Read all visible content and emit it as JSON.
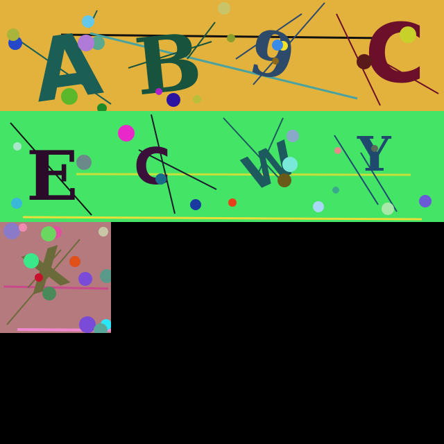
{
  "canvas": {
    "background": "#000000"
  },
  "tiles": [
    {
      "id": "tile-1",
      "background": "#e3b23c",
      "glyphs": [
        {
          "char": "A",
          "color": "#1a5e55"
        },
        {
          "char": "B",
          "color": "#17533d"
        },
        {
          "char": "9",
          "color": "#2d4a6b"
        },
        {
          "char": "C",
          "color": "#6b0f2a"
        }
      ]
    },
    {
      "id": "tile-2",
      "background": "#44e567",
      "glyphs": [
        {
          "char": "E",
          "color": "#2a0c2a"
        },
        {
          "char": "C",
          "color": "#3a0f3a"
        },
        {
          "char": "W",
          "color": "#1c5a5e"
        },
        {
          "char": "Y",
          "color": "#1f4a6e"
        }
      ]
    },
    {
      "id": "tile-3",
      "background": "#b57a7e",
      "glyphs": [
        {
          "char": "X",
          "color": "#6b6a3a"
        }
      ]
    }
  ]
}
